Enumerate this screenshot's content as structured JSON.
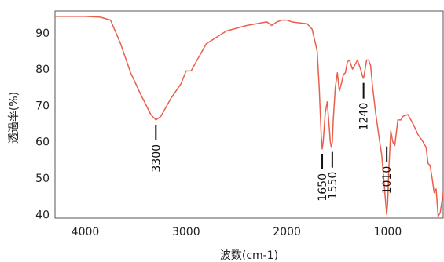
{
  "chart_data": {
    "type": "line",
    "title": "",
    "xlabel": "波数(cm-1)",
    "ylabel": "透過率(%)",
    "xlim": [
      4300,
      450
    ],
    "ylim": [
      39,
      96
    ],
    "x_reversed": true,
    "grid": false,
    "x_ticks": [
      4000,
      3000,
      2000,
      1000
    ],
    "x_tick_labels": [
      "4000",
      "3000",
      "2000",
      "1000"
    ],
    "y_ticks": [
      40,
      50,
      60,
      70,
      80,
      90
    ],
    "y_tick_labels": [
      "40",
      "50",
      "60",
      "70",
      "80",
      "90"
    ],
    "line_color": "#e8604c",
    "series": [
      {
        "x": [
          4300,
          4000,
          3850,
          3750,
          3650,
          3550,
          3450,
          3350,
          3300,
          3250,
          3150,
          3050,
          3000,
          2950,
          2900,
          2800,
          2600,
          2400,
          2200,
          2150,
          2100,
          2050,
          2000,
          1950,
          1900,
          1800,
          1750,
          1700,
          1680,
          1660,
          1650,
          1640,
          1620,
          1600,
          1580,
          1570,
          1560,
          1550,
          1540,
          1520,
          1500,
          1480,
          1460,
          1440,
          1420,
          1400,
          1380,
          1350,
          1320,
          1300,
          1270,
          1250,
          1240,
          1230,
          1210,
          1190,
          1170,
          1150,
          1120,
          1100,
          1080,
          1060,
          1040,
          1020,
          1010,
          1000,
          990,
          970,
          950,
          930,
          900,
          870,
          850,
          800,
          750,
          700,
          650,
          620,
          600,
          580,
          560,
          540,
          520,
          500,
          480,
          460,
          450
        ],
        "values": [
          94.5,
          94.5,
          94.3,
          93.5,
          87,
          79,
          73,
          67.5,
          66,
          67,
          72,
          76,
          79.5,
          79.5,
          82,
          87,
          90.5,
          92,
          93,
          92,
          93,
          93.5,
          93.5,
          93,
          92.8,
          92.5,
          91,
          85,
          75,
          62,
          58,
          60,
          68,
          71,
          64,
          60,
          58.5,
          60,
          66,
          75,
          79,
          74,
          76,
          78.5,
          79,
          82,
          82.5,
          80,
          81.5,
          82.5,
          80,
          78,
          77.5,
          79,
          82.5,
          82.5,
          81,
          75,
          68,
          64,
          60,
          56.5,
          50,
          43,
          40,
          43.5,
          52,
          63,
          60,
          59,
          66,
          66,
          67,
          67.5,
          65,
          62,
          60,
          58.5,
          54,
          53.5,
          50,
          46,
          47,
          39.5,
          40.5,
          44,
          46
        ]
      }
    ],
    "annotations": [
      {
        "label": "3300",
        "x": 3300,
        "y": 66
      },
      {
        "label": "1650",
        "x": 1650,
        "y": 58
      },
      {
        "label": "1550",
        "x": 1550,
        "y": 58.5
      },
      {
        "label": "1240",
        "x": 1240,
        "y": 77.5
      },
      {
        "label": "1010",
        "x": 1010,
        "y": 60
      }
    ]
  }
}
